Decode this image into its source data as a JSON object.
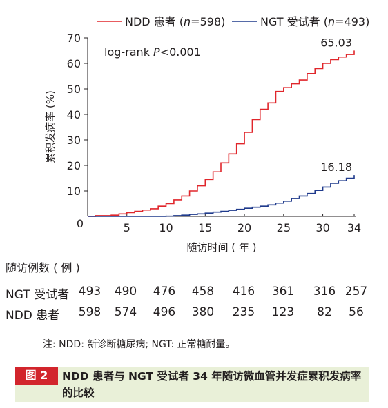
{
  "chart_data": {
    "type": "line",
    "title": "",
    "xlabel": "随访时间 ( 年 )",
    "ylabel": "累积发病率 (%)",
    "xlim": [
      0,
      34
    ],
    "ylim": [
      0,
      70
    ],
    "x_ticks": [
      5,
      10,
      15,
      20,
      25,
      30,
      34
    ],
    "x_tick_labels": [
      "5",
      "10",
      "15",
      "20",
      "25",
      "30",
      "34"
    ],
    "y_ticks": [
      0,
      10,
      20,
      30,
      40,
      50,
      60,
      70
    ],
    "y_tick_labels": [
      "0",
      "10",
      "20",
      "30",
      "40",
      "50",
      "60",
      "70"
    ],
    "origin_label": "0",
    "legend_position": "top",
    "grid": false,
    "annotation": "log-rank P<0.001",
    "annotation_prefix": "log-rank ",
    "annotation_p": "P",
    "annotation_suffix": "<0.001",
    "series": [
      {
        "name": "NDD 患者 (n=598)",
        "legend_prefix": "NDD 患者 (",
        "legend_n": "n",
        "legend_suffix": "=598)",
        "color": "#e0262b",
        "end_label": "65.03",
        "x": [
          0,
          1,
          3,
          4,
          5,
          6,
          7,
          8,
          9,
          10,
          11,
          12,
          13,
          14,
          15,
          16,
          17,
          18,
          19,
          20,
          21,
          22,
          23,
          24,
          25,
          26,
          27,
          28,
          29,
          30,
          31,
          32,
          33,
          34
        ],
        "y": [
          0,
          0.3,
          0.5,
          1.0,
          1.5,
          2.0,
          2.5,
          3.0,
          4.0,
          5.0,
          6.5,
          8.0,
          10.0,
          12.0,
          14.5,
          17.5,
          21.0,
          24.5,
          28.5,
          33.0,
          38.0,
          42.0,
          44.5,
          49.0,
          50.5,
          52.0,
          53.5,
          56.0,
          58.0,
          60.0,
          61.5,
          62.5,
          63.5,
          65.03
        ]
      },
      {
        "name": "NGT 受试者 (n=493)",
        "legend_prefix": "NGT 受试者 (",
        "legend_n": "n",
        "legend_suffix": "=493)",
        "color": "#1f3a8c",
        "end_label": "16.18",
        "x": [
          0,
          10,
          11,
          12,
          13,
          14,
          15,
          16,
          17,
          18,
          19,
          20,
          21,
          22,
          23,
          24,
          25,
          26,
          27,
          28,
          29,
          30,
          31,
          32,
          33,
          34
        ],
        "y": [
          0,
          0.1,
          0.3,
          0.5,
          0.8,
          1.0,
          1.3,
          1.7,
          2.0,
          2.4,
          2.8,
          3.2,
          3.6,
          4.0,
          4.5,
          5.2,
          6.0,
          7.0,
          8.0,
          9.0,
          10.2,
          11.5,
          13.0,
          14.0,
          15.0,
          16.18
        ]
      }
    ]
  },
  "risk_table": {
    "title": "随访例数 ( 例 )",
    "rows": [
      {
        "label": "NGT 受试者",
        "values": [
          "493",
          "490",
          "476",
          "458",
          "416",
          "361",
          "316",
          "257"
        ]
      },
      {
        "label": "NDD 患者",
        "values": [
          "598",
          "574",
          "496",
          "380",
          "235",
          "123",
          "82",
          "56"
        ]
      }
    ]
  },
  "note": "注: NDD: 新诊断糖尿病; NGT: 正常糖耐量。",
  "caption": {
    "tag": "图 2",
    "text": "NDD 患者与 NGT 受试者 34 年随访微血管并发症累积发病率的比较"
  }
}
